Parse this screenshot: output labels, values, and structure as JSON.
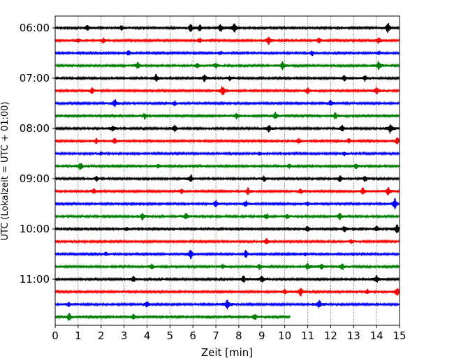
{
  "chart_data": {
    "type": "line",
    "title": "",
    "xlabel": "Zeit  [min]",
    "ylabel": "UTC (Lokalzeit = UTC + 01:00)",
    "xlim": [
      0,
      15
    ],
    "x_ticks": [
      "0",
      "1",
      "2",
      "3",
      "4",
      "5",
      "6",
      "7",
      "8",
      "9",
      "10",
      "11",
      "12",
      "13",
      "14",
      "15"
    ],
    "y_ticks": [
      {
        "label": "06:00",
        "trace": 0
      },
      {
        "label": "07:00",
        "trace": 4
      },
      {
        "label": "08:00",
        "trace": 8
      },
      {
        "label": "09:00",
        "trace": 12
      },
      {
        "label": "10:00",
        "trace": 16
      },
      {
        "label": "11:00",
        "trace": 20
      }
    ],
    "grid": "vertical dotted at each minute",
    "color_cycle": [
      "#000000",
      "#ff0000",
      "#0000ff",
      "#008000"
    ],
    "trace_interval_min": 15,
    "start_time_utc": "06:00",
    "traces": [
      {
        "start": "06:00",
        "color": "#000000",
        "end_min": 15,
        "events": [
          [
            1.4,
            0.5
          ],
          [
            2.9,
            0.5
          ],
          [
            5.9,
            0.6
          ],
          [
            6.3,
            0.5
          ],
          [
            7.2,
            0.8
          ],
          [
            7.8,
            0.9
          ],
          [
            14.5,
            1.0
          ]
        ]
      },
      {
        "start": "06:15",
        "color": "#ff0000",
        "end_min": 15,
        "events": [
          [
            1.0,
            0.4
          ],
          [
            2.1,
            0.4
          ],
          [
            6.3,
            0.4
          ],
          [
            9.3,
            0.8
          ],
          [
            11.5,
            0.4
          ],
          [
            14.1,
            0.5
          ]
        ]
      },
      {
        "start": "06:30",
        "color": "#0000ff",
        "end_min": 15,
        "events": [
          [
            3.2,
            0.4
          ],
          [
            7.2,
            0.3
          ],
          [
            11.2,
            0.4
          ],
          [
            14.1,
            0.3
          ]
        ]
      },
      {
        "start": "06:45",
        "color": "#008000",
        "end_min": 15,
        "events": [
          [
            3.6,
            0.6
          ],
          [
            6.2,
            0.4
          ],
          [
            7.0,
            0.5
          ],
          [
            9.9,
            0.7
          ],
          [
            14.1,
            0.8
          ]
        ]
      },
      {
        "start": "07:00",
        "color": "#000000",
        "end_min": 15,
        "events": [
          [
            4.4,
            0.7
          ],
          [
            6.5,
            0.7
          ],
          [
            7.6,
            0.4
          ],
          [
            12.6,
            0.5
          ],
          [
            13.5,
            0.5
          ]
        ]
      },
      {
        "start": "07:15",
        "color": "#ff0000",
        "end_min": 15,
        "events": [
          [
            1.6,
            0.5
          ],
          [
            7.3,
            0.9
          ],
          [
            11.0,
            0.5
          ],
          [
            14.0,
            0.6
          ]
        ]
      },
      {
        "start": "07:30",
        "color": "#0000ff",
        "end_min": 15,
        "events": [
          [
            2.6,
            0.7
          ],
          [
            5.2,
            0.4
          ],
          [
            12.0,
            0.5
          ]
        ]
      },
      {
        "start": "07:45",
        "color": "#008000",
        "end_min": 15,
        "events": [
          [
            3.9,
            0.5
          ],
          [
            7.9,
            0.5
          ],
          [
            9.6,
            0.6
          ],
          [
            12.2,
            0.6
          ]
        ]
      },
      {
        "start": "08:00",
        "color": "#000000",
        "end_min": 15,
        "events": [
          [
            2.5,
            0.5
          ],
          [
            5.2,
            0.6
          ],
          [
            9.3,
            0.6
          ],
          [
            12.5,
            0.5
          ],
          [
            14.6,
            0.9
          ]
        ]
      },
      {
        "start": "08:15",
        "color": "#ff0000",
        "end_min": 15,
        "events": [
          [
            1.8,
            0.4
          ],
          [
            2.6,
            0.5
          ],
          [
            10.6,
            0.5
          ],
          [
            12.8,
            0.4
          ],
          [
            14.9,
            0.6
          ]
        ]
      },
      {
        "start": "08:30",
        "color": "#0000ff",
        "end_min": 15,
        "events": [
          [
            2.0,
            0.3
          ],
          [
            8.9,
            0.3
          ],
          [
            12.6,
            0.3
          ]
        ]
      },
      {
        "start": "08:45",
        "color": "#008000",
        "end_min": 15,
        "events": [
          [
            1.1,
            0.7
          ],
          [
            4.5,
            0.3
          ],
          [
            10.2,
            0.4
          ],
          [
            13.1,
            0.4
          ]
        ]
      },
      {
        "start": "09:00",
        "color": "#000000",
        "end_min": 15,
        "events": [
          [
            1.8,
            0.4
          ],
          [
            5.9,
            0.7
          ],
          [
            9.1,
            0.5
          ],
          [
            12.4,
            0.5
          ],
          [
            13.5,
            0.5
          ]
        ]
      },
      {
        "start": "09:15",
        "color": "#ff0000",
        "end_min": 15,
        "events": [
          [
            1.7,
            0.4
          ],
          [
            5.5,
            0.4
          ],
          [
            8.4,
            0.6
          ],
          [
            10.7,
            0.4
          ],
          [
            13.4,
            0.6
          ],
          [
            14.5,
            0.7
          ]
        ]
      },
      {
        "start": "09:30",
        "color": "#0000ff",
        "end_min": 15,
        "events": [
          [
            7.0,
            0.6
          ],
          [
            8.3,
            0.6
          ],
          [
            11.0,
            0.4
          ],
          [
            14.8,
            0.9
          ]
        ]
      },
      {
        "start": "09:45",
        "color": "#008000",
        "end_min": 15,
        "events": [
          [
            3.8,
            0.6
          ],
          [
            5.7,
            0.5
          ],
          [
            9.2,
            0.5
          ],
          [
            10.1,
            0.4
          ],
          [
            12.4,
            0.5
          ]
        ]
      },
      {
        "start": "10:00",
        "color": "#000000",
        "end_min": 15,
        "events": [
          [
            3.1,
            0.3
          ],
          [
            11.0,
            0.6
          ],
          [
            12.6,
            0.5
          ],
          [
            14.0,
            0.5
          ],
          [
            14.9,
            0.8
          ]
        ]
      },
      {
        "start": "10:15",
        "color": "#ff0000",
        "end_min": 15,
        "events": [
          [
            9.2,
            0.5
          ],
          [
            12.9,
            0.4
          ]
        ]
      },
      {
        "start": "10:30",
        "color": "#0000ff",
        "end_min": 15,
        "events": [
          [
            2.2,
            0.3
          ],
          [
            5.9,
            0.9
          ],
          [
            8.3,
            0.7
          ],
          [
            10.9,
            0.3
          ]
        ]
      },
      {
        "start": "10:45",
        "color": "#008000",
        "end_min": 15,
        "events": [
          [
            4.2,
            0.5
          ],
          [
            7.3,
            0.4
          ],
          [
            8.9,
            0.5
          ],
          [
            11.0,
            0.6
          ],
          [
            11.6,
            0.5
          ],
          [
            12.5,
            0.6
          ]
        ]
      },
      {
        "start": "11:00",
        "color": "#000000",
        "end_min": 15,
        "events": [
          [
            3.4,
            0.5
          ],
          [
            8.2,
            0.6
          ],
          [
            9.0,
            0.6
          ],
          [
            14.0,
            0.7
          ]
        ]
      },
      {
        "start": "11:15",
        "color": "#ff0000",
        "end_min": 15,
        "events": [
          [
            10.0,
            0.4
          ],
          [
            10.7,
            0.8
          ],
          [
            13.6,
            0.4
          ],
          [
            14.9,
            0.7
          ]
        ]
      },
      {
        "start": "11:30",
        "color": "#0000ff",
        "end_min": 15,
        "events": [
          [
            0.6,
            0.4
          ],
          [
            4.0,
            0.6
          ],
          [
            7.5,
            0.9
          ],
          [
            11.5,
            0.7
          ]
        ]
      },
      {
        "start": "11:45",
        "color": "#008000",
        "end_min": 10.25,
        "events": [
          [
            0.6,
            0.7
          ],
          [
            3.4,
            0.4
          ],
          [
            8.7,
            0.5
          ]
        ]
      }
    ]
  }
}
